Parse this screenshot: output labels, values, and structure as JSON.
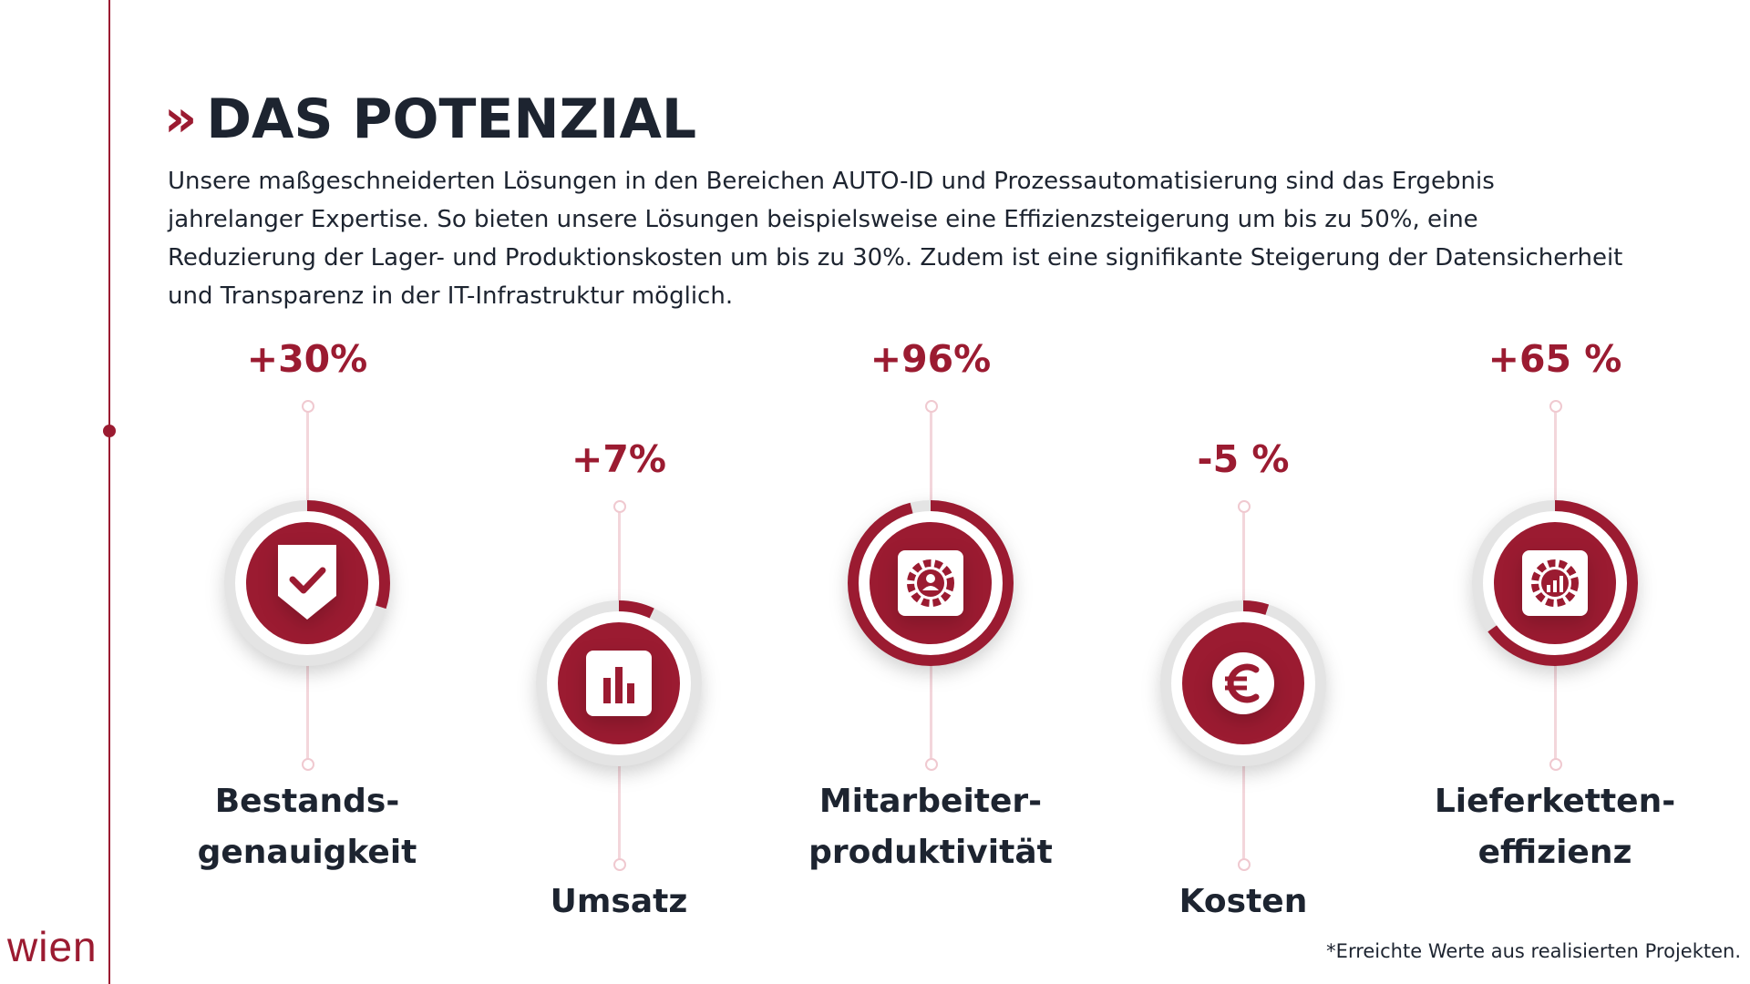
{
  "brand": {
    "logo_text": "wien"
  },
  "header": {
    "chevron": "»",
    "title": "DAS POTENZIAL",
    "intro_line1": "Unsere maßgeschneiderten Lösungen in den Bereichen AUTO-ID und Prozessautomatisierung sind das Ergebnis",
    "intro_line2": "jahrelanger Expertise. So bieten unsere Lösungen beispielsweise eine Effizienzsteigerung um bis zu 50%, eine",
    "intro_line3": "Reduzierung der Lager- und Produktionskosten um bis zu 30%. Zudem ist eine signifikante Steigerung der Datensicherheit",
    "intro_line4": "und Transparenz in der IT-Infrastruktur möglich."
  },
  "metrics": [
    {
      "value_text": "+30%",
      "label_line1": "Bestands-",
      "label_line2": "genauigkeit",
      "icon": "shield-check-icon",
      "ring_fraction": 0.3
    },
    {
      "value_text": "+7%",
      "label_line1": "Umsatz",
      "label_line2": "",
      "icon": "bar-chart-icon",
      "ring_fraction": 0.07
    },
    {
      "value_text": "+96%",
      "label_line1": "Mitarbeiter-",
      "label_line2": "produktivität",
      "icon": "gear-person-icon",
      "ring_fraction": 0.96
    },
    {
      "value_text": "-5 %",
      "label_line1": "Kosten",
      "label_line2": "",
      "icon": "euro-icon",
      "ring_fraction": 0.05
    },
    {
      "value_text": "+65 %",
      "label_line1": "Lieferketten-",
      "label_line2": "effizienz",
      "icon": "gear-chart-icon",
      "ring_fraction": 0.65
    }
  ],
  "colors": {
    "accent": "#9b1b31",
    "text": "#1d2430",
    "ring_track": "#e4e4e4",
    "line": "#f3d6db"
  },
  "footnote": "*Erreichte Werte aus realisierten Projekten."
}
